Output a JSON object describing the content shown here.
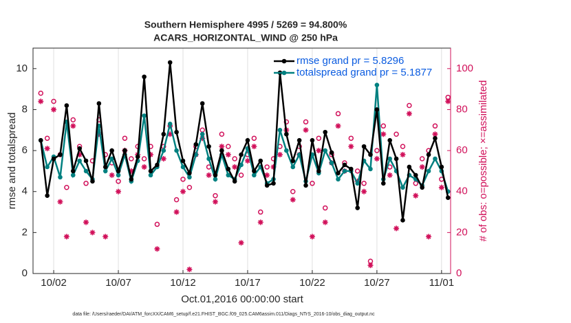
{
  "chart_data": {
    "type": "line",
    "title": "Southern Hemisphere 4995 / 5269 = 94.800%",
    "subtitle": "ACARS_HORIZONTAL_WIND @ 250 hPa",
    "xlabel": "Oct.01,2016 00:00:00 start",
    "ylabel": "rmse and totalspread",
    "y2label": "# of obs: o=possible; ×=assimilated",
    "footnote": "data file: /Users/raeder/DAI/ATM_forcXX/CAM6_setup/f.e21.FHIST_BGC.f09_025.CAM6assim.011/Diags_NTrS_2016-10/obs_diag_output.nc",
    "xlim": [
      -0.6,
      31.7
    ],
    "xticks": [
      {
        "value": 1,
        "label": "10/02"
      },
      {
        "value": 6,
        "label": "10/07"
      },
      {
        "value": 11,
        "label": "10/12"
      },
      {
        "value": 16,
        "label": "10/17"
      },
      {
        "value": 21,
        "label": "10/22"
      },
      {
        "value": 26,
        "label": "10/27"
      },
      {
        "value": 31,
        "label": "11/01"
      }
    ],
    "ylim": [
      0,
      11
    ],
    "yticks": [
      0,
      2,
      4,
      6,
      8,
      10
    ],
    "y2lim": [
      0,
      110
    ],
    "y2ticks": [
      0,
      20,
      40,
      60,
      80,
      100
    ],
    "x": [
      0,
      0.5,
      1,
      1.5,
      2,
      2.5,
      3,
      3.5,
      4,
      4.5,
      5,
      5.5,
      6,
      6.5,
      7,
      7.5,
      8,
      8.5,
      9,
      9.5,
      10,
      10.5,
      11,
      11.5,
      12,
      12.5,
      13,
      13.5,
      14,
      14.5,
      15,
      15.5,
      16,
      16.5,
      17,
      17.5,
      18,
      18.5,
      19,
      19.5,
      20,
      20.5,
      21,
      21.5,
      22,
      22.5,
      23,
      23.5,
      24,
      24.5,
      25,
      25.5,
      26,
      26.5,
      27,
      27.5,
      28,
      28.5,
      29,
      29.5,
      30,
      30.5,
      31,
      31.5
    ],
    "series": [
      {
        "name": "rmse grand pr = 5.8296",
        "color": "#000000",
        "marker": "dot",
        "values": [
          6.5,
          3.8,
          5.6,
          5.8,
          8.2,
          5.0,
          6.1,
          5.5,
          4.5,
          8.3,
          5.2,
          6.0,
          5.0,
          6.0,
          4.6,
          5.7,
          9.6,
          5.0,
          5.3,
          6.8,
          10.3,
          6.9,
          5.5,
          4.9,
          6.3,
          8.3,
          6.2,
          4.8,
          6.0,
          5.1,
          4.5,
          5.8,
          6.5,
          5.0,
          5.5,
          4.3,
          4.4,
          9.8,
          6.8,
          5.5,
          6.5,
          4.3,
          6.5,
          5.0,
          6.9,
          5.9,
          4.9,
          5.3,
          5.1,
          3.2,
          6.2,
          5.8,
          8.0,
          4.4,
          6.5,
          5.6,
          2.6,
          5.2,
          4.8,
          4.2,
          5.8,
          6.6,
          5.2,
          3.7
        ]
      },
      {
        "name": "totalspread grand pr = 5.1877",
        "color": "#008080",
        "marker": "dot",
        "values": [
          6.5,
          5.2,
          5.7,
          4.7,
          7.4,
          4.8,
          5.5,
          5.0,
          4.6,
          7.2,
          5.0,
          5.6,
          4.8,
          5.8,
          4.5,
          5.5,
          7.7,
          4.8,
          5.2,
          6.0,
          7.3,
          6.0,
          5.2,
          4.7,
          5.8,
          6.8,
          5.6,
          4.6,
          5.8,
          4.8,
          4.6,
          5.3,
          6.1,
          4.8,
          5.2,
          4.4,
          4.6,
          7.0,
          6.0,
          5.2,
          5.8,
          4.5,
          5.8,
          4.9,
          6.0,
          5.4,
          4.6,
          5.0,
          5.0,
          4.4,
          5.5,
          5.1,
          9.2,
          4.6,
          5.6,
          5.0,
          4.2,
          4.8,
          4.6,
          4.3,
          5.0,
          5.6,
          5.0,
          4.0
        ]
      },
      {
        "color": "#d1105a",
        "axis": "y2",
        "marker": "circle",
        "values": [
          88,
          66,
          84,
          58,
          42,
          75,
          62,
          44,
          55,
          75,
          58,
          54,
          45,
          66,
          56,
          62,
          56,
          62,
          24,
          62,
          72,
          36,
          46,
          42,
          62,
          70,
          52,
          38,
          68,
          62,
          56,
          48,
          58,
          66,
          30,
          52,
          56,
          62,
          74,
          40,
          62,
          74,
          44,
          66,
          32,
          58,
          78,
          54,
          66,
          50,
          44,
          6,
          60,
          72,
          52,
          68,
          62,
          82,
          44,
          56,
          60,
          72,
          46,
          86
        ]
      },
      {
        "color": "#d1105a",
        "axis": "y2",
        "marker": "star",
        "values": [
          84,
          61,
          80,
          35,
          18,
          72,
          58,
          25,
          20,
          68,
          18,
          48,
          40,
          60,
          50,
          58,
          52,
          58,
          12,
          56,
          68,
          30,
          40,
          2,
          58,
          66,
          48,
          35,
          62,
          58,
          52,
          15,
          55,
          62,
          25,
          48,
          52,
          58,
          70,
          36,
          58,
          70,
          18,
          60,
          25,
          54,
          72,
          50,
          62,
          45,
          40,
          4,
          56,
          68,
          48,
          22,
          58,
          78,
          38,
          52,
          18,
          68,
          42,
          84
        ]
      }
    ]
  }
}
